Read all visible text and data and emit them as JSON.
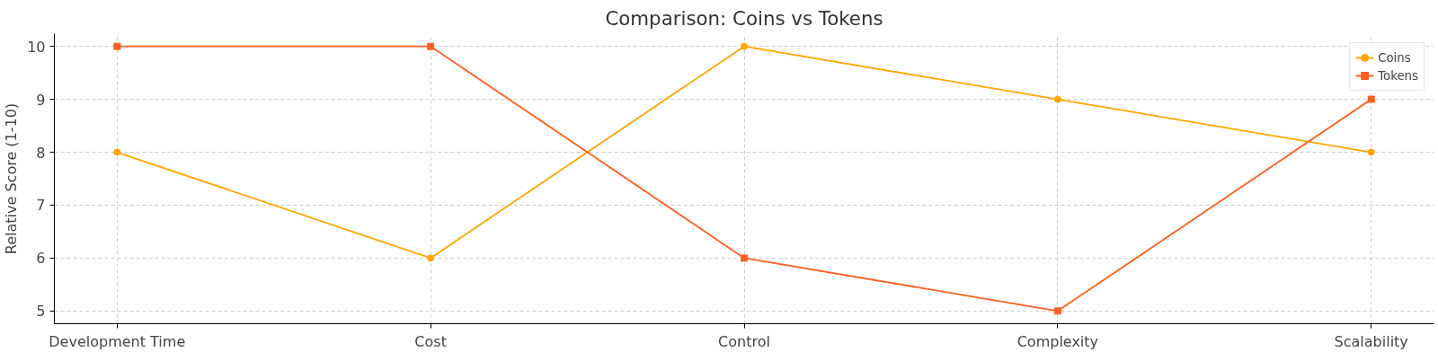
{
  "chart_data": {
    "type": "line",
    "title": "Comparison: Coins vs Tokens",
    "ylabel": "Relative Score (1-10)",
    "categories": [
      "Development Time",
      "Cost",
      "Control",
      "Complexity",
      "Scalability"
    ],
    "series": [
      {
        "name": "Coins",
        "color": "#ffa500",
        "marker": "circle",
        "values": [
          8,
          6,
          10,
          9,
          8
        ]
      },
      {
        "name": "Tokens",
        "color": "#ff5f1f",
        "marker": "square",
        "values": [
          10,
          10,
          6,
          5,
          9
        ]
      }
    ],
    "ylim": [
      4.76,
      10.24
    ],
    "yticks": [
      5,
      6,
      7,
      8,
      9,
      10
    ],
    "grid": true,
    "legend": "top right",
    "line_style": "solid"
  }
}
